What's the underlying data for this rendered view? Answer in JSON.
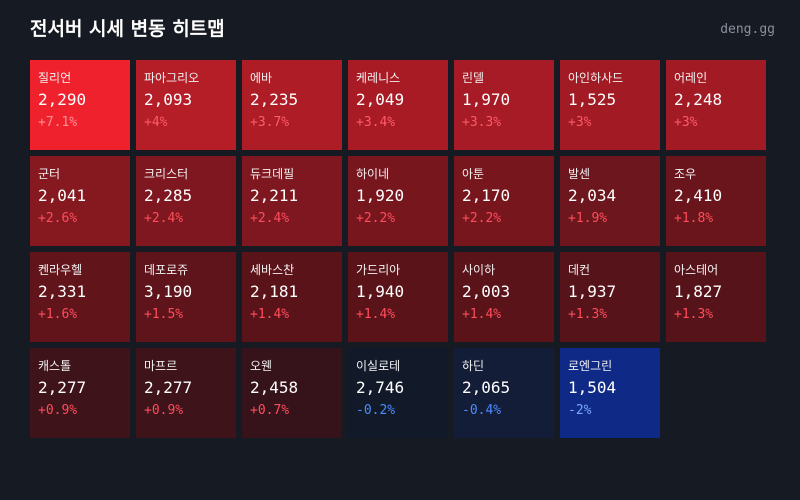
{
  "header": {
    "title": "전서버 시세 변동 히트맵",
    "brand": "deng.gg"
  },
  "tiles": [
    {
      "name": "질리언",
      "price": "2,290",
      "change": "+7.1%",
      "color": "#ee212d",
      "change_color": "#ff8f95"
    },
    {
      "name": "파아그리오",
      "price": "2,093",
      "change": "+4%",
      "color": "#b51d27",
      "change_color": "#ff5a68"
    },
    {
      "name": "에바",
      "price": "2,235",
      "change": "+3.7%",
      "color": "#ae1c26",
      "change_color": "#ff5a68"
    },
    {
      "name": "케레니스",
      "price": "2,049",
      "change": "+3.4%",
      "color": "#a81b25",
      "change_color": "#ff5a68"
    },
    {
      "name": "린델",
      "price": "1,970",
      "change": "+3.3%",
      "color": "#a61b25",
      "change_color": "#ff5a68"
    },
    {
      "name": "아인하사드",
      "price": "1,525",
      "change": "+3%",
      "color": "#a21a24",
      "change_color": "#ff5a68"
    },
    {
      "name": "어레인",
      "price": "2,248",
      "change": "+3%",
      "color": "#a21a24",
      "change_color": "#ff5a68"
    },
    {
      "name": "군터",
      "price": "2,041",
      "change": "+2.6%",
      "color": "#861820",
      "change_color": "#ff4d5c"
    },
    {
      "name": "크리스터",
      "price": "2,285",
      "change": "+2.4%",
      "color": "#7e171f",
      "change_color": "#ff4d5c"
    },
    {
      "name": "듀크데필",
      "price": "2,211",
      "change": "+2.4%",
      "color": "#7e171f",
      "change_color": "#ff4d5c"
    },
    {
      "name": "하이네",
      "price": "1,920",
      "change": "+2.2%",
      "color": "#78161e",
      "change_color": "#ff4d5c"
    },
    {
      "name": "아툰",
      "price": "2,170",
      "change": "+2.2%",
      "color": "#78161e",
      "change_color": "#ff4d5c"
    },
    {
      "name": "발센",
      "price": "2,034",
      "change": "+1.9%",
      "color": "#6e161d",
      "change_color": "#ff4d5c"
    },
    {
      "name": "조우",
      "price": "2,410",
      "change": "+1.8%",
      "color": "#6a151c",
      "change_color": "#ff4d5c"
    },
    {
      "name": "켄라우헬",
      "price": "2,331",
      "change": "+1.6%",
      "color": "#62141b",
      "change_color": "#ff4d5c"
    },
    {
      "name": "데포로쥬",
      "price": "3,190",
      "change": "+1.5%",
      "color": "#5e141a",
      "change_color": "#ff4d5c"
    },
    {
      "name": "세바스찬",
      "price": "2,181",
      "change": "+1.4%",
      "color": "#5a1419",
      "change_color": "#ff4d5c"
    },
    {
      "name": "가드리아",
      "price": "1,940",
      "change": "+1.4%",
      "color": "#5a1419",
      "change_color": "#ff4d5c"
    },
    {
      "name": "사이하",
      "price": "2,003",
      "change": "+1.4%",
      "color": "#5a1419",
      "change_color": "#ff4d5c"
    },
    {
      "name": "데컨",
      "price": "1,937",
      "change": "+1.3%",
      "color": "#56131a",
      "change_color": "#ff4d5c"
    },
    {
      "name": "아스테어",
      "price": "1,827",
      "change": "+1.3%",
      "color": "#56131a",
      "change_color": "#ff4d5c"
    },
    {
      "name": "캐스톨",
      "price": "2,277",
      "change": "+0.9%",
      "color": "#3e1319",
      "change_color": "#ff4d5c"
    },
    {
      "name": "마프르",
      "price": "2,277",
      "change": "+0.9%",
      "color": "#3e1319",
      "change_color": "#ff4d5c"
    },
    {
      "name": "오웬",
      "price": "2,458",
      "change": "+0.7%",
      "color": "#36131a",
      "change_color": "#ff4d5c"
    },
    {
      "name": "이실로테",
      "price": "2,746",
      "change": "-0.2%",
      "color": "#121a2a",
      "change_color": "#4a8cff"
    },
    {
      "name": "하딘",
      "price": "2,065",
      "change": "-0.4%",
      "color": "#141d38",
      "change_color": "#4a8cff"
    },
    {
      "name": "로엔그린",
      "price": "1,504",
      "change": "-2%",
      "color": "#0f2a86",
      "change_color": "#7aa8ff"
    }
  ]
}
